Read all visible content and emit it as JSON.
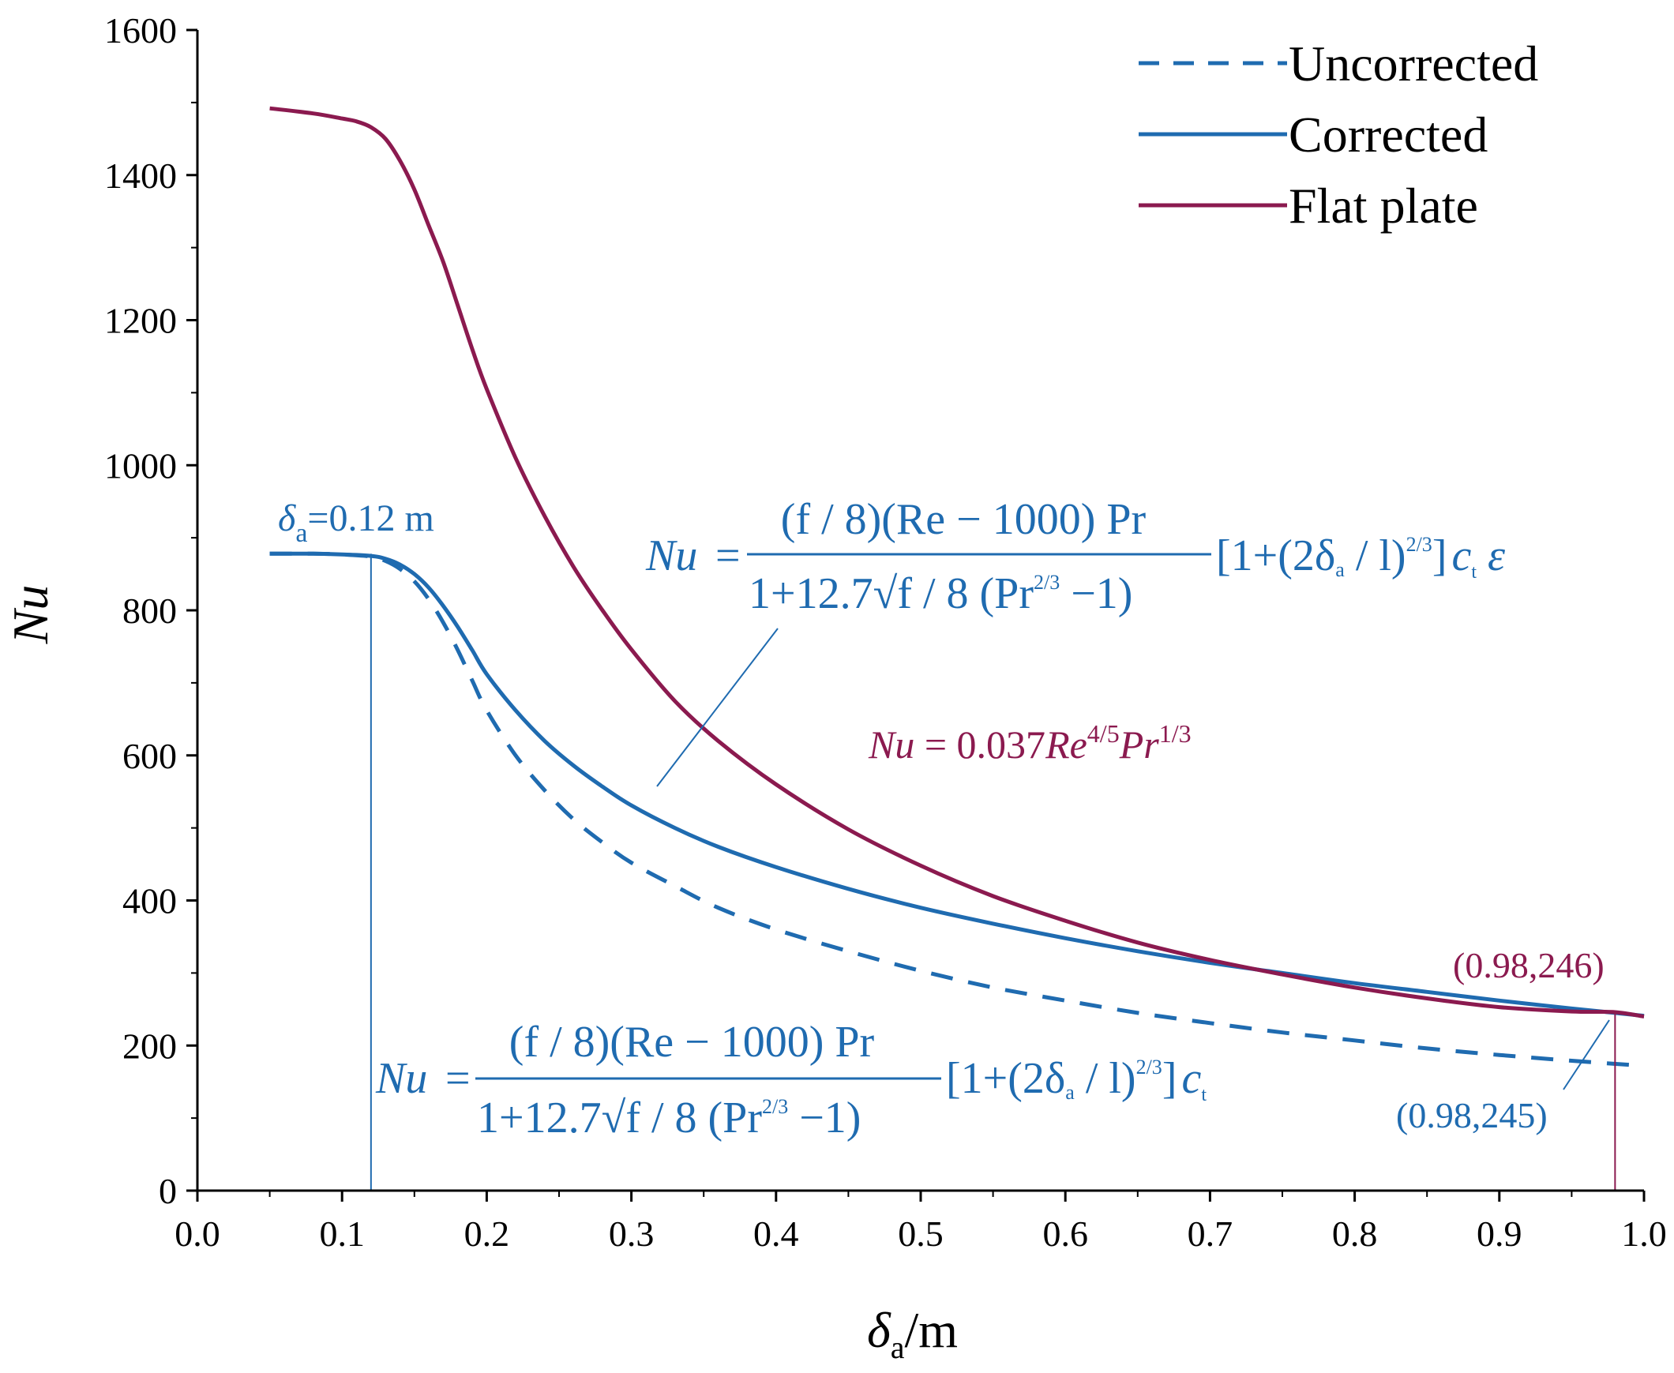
{
  "chart_data": {
    "type": "line",
    "title": "",
    "xlabel": "δa/m",
    "ylabel": "Nu",
    "xlim": [
      0.0,
      1.0
    ],
    "ylim": [
      0,
      1600
    ],
    "x_ticks": [
      "0.0",
      "0.1",
      "0.2",
      "0.3",
      "0.4",
      "0.5",
      "0.6",
      "0.7",
      "0.8",
      "0.9",
      "1.0"
    ],
    "y_ticks": [
      "0",
      "200",
      "400",
      "600",
      "800",
      "1000",
      "1200",
      "1400",
      "1600"
    ],
    "legend_position": "top-right",
    "colors": {
      "blue": "#1f6bb0",
      "red": "#8b1a4f",
      "axis": "#000000"
    },
    "series": [
      {
        "name": "Uncorrected",
        "style": "dashed",
        "color": "#1f6bb0",
        "x": [
          0.05,
          0.08,
          0.1,
          0.12,
          0.13,
          0.14,
          0.15,
          0.16,
          0.17,
          0.18,
          0.19,
          0.2,
          0.22,
          0.24,
          0.26,
          0.28,
          0.3,
          0.33,
          0.36,
          0.4,
          0.45,
          0.5,
          0.55,
          0.6,
          0.65,
          0.7,
          0.75,
          0.8,
          0.85,
          0.9,
          0.95,
          1.0
        ],
        "y": [
          878,
          878,
          877,
          874,
          868,
          857,
          840,
          815,
          783,
          745,
          703,
          662,
          600,
          552,
          512,
          480,
          452,
          420,
          390,
          360,
          330,
          303,
          280,
          262,
          245,
          231,
          218,
          207,
          196,
          187,
          179,
          172
        ]
      },
      {
        "name": "Corrected",
        "style": "solid",
        "color": "#1f6bb0",
        "x": [
          0.05,
          0.08,
          0.1,
          0.12,
          0.13,
          0.14,
          0.15,
          0.16,
          0.17,
          0.18,
          0.19,
          0.2,
          0.22,
          0.24,
          0.26,
          0.28,
          0.3,
          0.33,
          0.36,
          0.4,
          0.45,
          0.5,
          0.55,
          0.6,
          0.65,
          0.7,
          0.75,
          0.8,
          0.85,
          0.9,
          0.95,
          0.98,
          1.0
        ],
        "y": [
          878,
          878,
          877,
          875,
          871,
          863,
          850,
          831,
          806,
          777,
          745,
          712,
          662,
          620,
          586,
          557,
          531,
          500,
          474,
          446,
          416,
          390,
          368,
          348,
          330,
          314,
          300,
          286,
          274,
          262,
          251,
          245,
          241
        ]
      },
      {
        "name": "Flat plate",
        "style": "solid",
        "color": "#8b1a4f",
        "x": [
          0.05,
          0.08,
          0.1,
          0.11,
          0.12,
          0.13,
          0.14,
          0.15,
          0.16,
          0.17,
          0.18,
          0.19,
          0.2,
          0.22,
          0.24,
          0.26,
          0.28,
          0.3,
          0.33,
          0.36,
          0.4,
          0.45,
          0.5,
          0.55,
          0.6,
          0.65,
          0.7,
          0.75,
          0.8,
          0.85,
          0.9,
          0.95,
          0.98,
          1.0
        ],
        "y": [
          1492,
          1485,
          1478,
          1474,
          1466,
          1450,
          1420,
          1380,
          1330,
          1280,
          1220,
          1160,
          1105,
          1010,
          930,
          860,
          800,
          746,
          675,
          620,
          560,
          498,
          448,
          406,
          372,
          342,
          318,
          298,
          280,
          265,
          253,
          247,
          246,
          240
        ]
      }
    ],
    "annotations": {
      "delta_label_sym": "δ",
      "delta_label_sub": "a",
      "delta_label_val": "=0.12 m",
      "delta_x": 0.12,
      "end_x": 0.98,
      "point_red": "(0.98,246)",
      "point_blue": "(0.98,245)",
      "flat_plate_eq": {
        "lhs": "Nu",
        "coef": " = 0.037",
        "re": "Re",
        "re_exp": "4/5",
        "pr": "Pr",
        "pr_exp": "1/3"
      },
      "corrected_eq": {
        "lhs": "Nu",
        "eq": "=",
        "numerator": "(f / 8)(Re − 1000) Pr",
        "denominator": "1+12.7√f / 8 (Pr",
        "den_exp": "2/3",
        "den_tail": " −1)",
        "bracket": "[1+(2δ",
        "bracket_sub": "a",
        "bracket_mid": " / l)",
        "bracket_exp": "2/3",
        "bracket_end": "]",
        "ct": "c",
        "ct_sub": "t",
        "eps": "ε"
      },
      "uncorrected_eq": {
        "lhs": "Nu",
        "eq": "=",
        "numerator": "(f / 8)(Re − 1000) Pr",
        "denominator": "1+12.7√f / 8 (Pr",
        "den_exp": "2/3",
        "den_tail": " −1)",
        "bracket": "[1+(2δ",
        "bracket_sub": "a",
        "bracket_mid": " / l)",
        "bracket_exp": "2/3",
        "bracket_end": "]",
        "ct": "c",
        "ct_sub": "t"
      }
    }
  }
}
